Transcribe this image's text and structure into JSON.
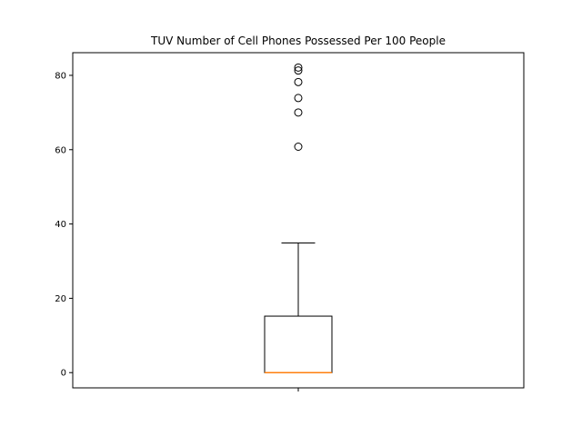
{
  "chart_data": {
    "type": "box",
    "title": "TUV Number of Cell Phones Possessed Per 100 People",
    "xlabel": "",
    "ylabel": "",
    "x_tick_labels": [
      ""
    ],
    "ylim": [
      -4.1,
      86.1
    ],
    "y_ticks": [
      0,
      20,
      40,
      60,
      80
    ],
    "grid": false,
    "box": {
      "whisker_low": 0,
      "q1": 0,
      "median": 0,
      "q3": 15.2,
      "whisker_high": 34.9,
      "outliers": [
        60.8,
        70.0,
        73.9,
        78.2,
        81.3,
        82.1
      ]
    },
    "colors": {
      "box": "#000000",
      "median": "#ff7f0e",
      "outlier_edge": "#000000"
    }
  }
}
